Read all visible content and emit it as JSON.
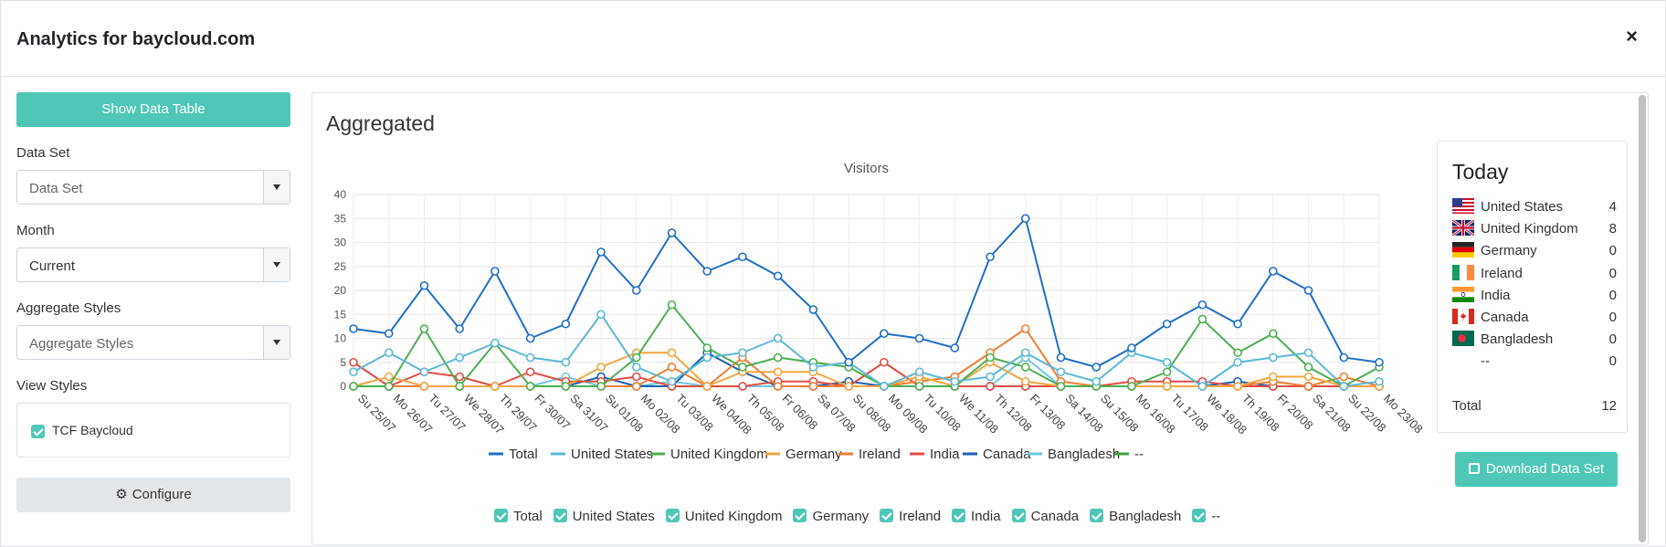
{
  "modal": {
    "title": "Analytics for baycloud.com",
    "close_label": "×"
  },
  "sidebar": {
    "show_table_label": "Show Data Table",
    "data_set": {
      "label": "Data Set",
      "placeholder": "Data Set"
    },
    "month": {
      "label": "Month",
      "value": "Current"
    },
    "aggregate_styles": {
      "label": "Aggregate Styles",
      "placeholder": "Aggregate Styles"
    },
    "view_styles": {
      "label": "View Styles",
      "items": [
        {
          "label": "TCF Baycloud",
          "checked": true
        }
      ]
    },
    "configure_label": "Configure"
  },
  "panel": {
    "title": "Aggregated"
  },
  "today": {
    "title": "Today",
    "rows": [
      {
        "country": "United States",
        "count": "4",
        "flag": "us-flag"
      },
      {
        "country": "United Kingdom",
        "count": "8",
        "flag": "uk-flag"
      },
      {
        "country": "Germany",
        "count": "0",
        "flag": "de-flag"
      },
      {
        "country": "Ireland",
        "count": "0",
        "flag": "ie-flag"
      },
      {
        "country": "India",
        "count": "0",
        "flag": "in-flag"
      },
      {
        "country": "Canada",
        "count": "0",
        "flag": "ca-flag"
      },
      {
        "country": "Bangladesh",
        "count": "0",
        "flag": "bd-flag"
      },
      {
        "country": "--",
        "count": "0",
        "flag": ""
      }
    ],
    "total_label": "Total",
    "total_value": "12"
  },
  "download_label": "Download Data Set",
  "series_checks": [
    "Total",
    "United States",
    "United Kingdom",
    "Germany",
    "Ireland",
    "India",
    "Canada",
    "Bangladesh",
    "--"
  ],
  "colors": {
    "teal": "#4fc7b6"
  },
  "chart_data": {
    "type": "line",
    "title": "Visitors",
    "ylim": [
      0,
      40
    ],
    "yticks": [
      0,
      5,
      10,
      15,
      20,
      25,
      30,
      35,
      40
    ],
    "categories": [
      "Su 25/07",
      "Mo 26/07",
      "Tu 27/07",
      "We 28/07",
      "Th 29/07",
      "Fr 30/07",
      "Sa 31/07",
      "Su 01/08",
      "Mo 02/08",
      "Tu 03/08",
      "We 04/08",
      "Th 05/08",
      "Fr 06/08",
      "Sa 07/08",
      "Su 08/08",
      "Mo 09/08",
      "Tu 10/08",
      "We 11/08",
      "Th 12/08",
      "Fr 13/08",
      "Sa 14/08",
      "Su 15/08",
      "Mo 16/08",
      "Tu 17/08",
      "We 18/08",
      "Th 19/08",
      "Fr 20/08",
      "Sa 21/08",
      "Su 22/08",
      "Mo 23/08"
    ],
    "legend_position": "bottom",
    "series": [
      {
        "name": "Total",
        "color": "#1f6fc5",
        "values": [
          12,
          11,
          21,
          12,
          24,
          10,
          13,
          28,
          20,
          32,
          24,
          27,
          23,
          16,
          5,
          11,
          10,
          8,
          27,
          35,
          6,
          4,
          8,
          13,
          17,
          13,
          24,
          20,
          6,
          5
        ]
      },
      {
        "name": "United States",
        "color": "#5bb8d6",
        "values": [
          3,
          7,
          3,
          6,
          9,
          6,
          5,
          15,
          4,
          1,
          6,
          7,
          10,
          4,
          5,
          0,
          3,
          1,
          2,
          7,
          3,
          1,
          7,
          5,
          0,
          5,
          6,
          7,
          0,
          1
        ]
      },
      {
        "name": "United Kingdom",
        "color": "#4caf50",
        "values": [
          0,
          0,
          12,
          0,
          9,
          0,
          0,
          0,
          6,
          17,
          8,
          4,
          6,
          5,
          4,
          0,
          0,
          0,
          6,
          4,
          0,
          0,
          0,
          3,
          14,
          7,
          11,
          4,
          0,
          4
        ]
      },
      {
        "name": "Germany",
        "color": "#f0a63f",
        "values": [
          0,
          2,
          0,
          0,
          0,
          0,
          0,
          4,
          7,
          7,
          0,
          3,
          3,
          3,
          0,
          0,
          2,
          0,
          5,
          1,
          0,
          0,
          0,
          0,
          0,
          0,
          2,
          2,
          0,
          0
        ]
      },
      {
        "name": "Ireland",
        "color": "#ee7e33",
        "values": [
          0,
          0,
          0,
          0,
          0,
          0,
          0,
          0,
          0,
          4,
          0,
          6,
          0,
          0,
          0,
          0,
          1,
          2,
          7,
          12,
          1,
          0,
          0,
          0,
          0,
          0,
          1,
          0,
          2,
          0
        ]
      },
      {
        "name": "India",
        "color": "#e34b42",
        "values": [
          5,
          0,
          3,
          2,
          0,
          3,
          1,
          1,
          2,
          0,
          0,
          0,
          1,
          1,
          0,
          5,
          0,
          0,
          0,
          0,
          0,
          0,
          1,
          1,
          1,
          0,
          0,
          0,
          0,
          0
        ]
      },
      {
        "name": "Canada",
        "color": "#1b5fb2",
        "values": [
          0,
          0,
          0,
          0,
          0,
          0,
          0,
          2,
          0,
          0,
          7,
          3,
          0,
          0,
          1,
          0,
          0,
          0,
          0,
          0,
          0,
          0,
          0,
          0,
          0,
          1,
          0,
          0,
          0,
          0
        ]
      },
      {
        "name": "Bangladesh",
        "color": "#6cc8e0",
        "values": [
          0,
          0,
          0,
          0,
          0,
          0,
          2,
          0,
          0,
          1,
          0,
          0,
          0,
          0,
          0,
          0,
          0,
          0,
          0,
          6,
          0,
          0,
          0,
          0,
          0,
          0,
          0,
          0,
          0,
          0
        ]
      },
      {
        "name": "--",
        "color": "#3aa344",
        "values": [
          0,
          0,
          0,
          0,
          0,
          0,
          0,
          0,
          0,
          0,
          0,
          0,
          0,
          0,
          0,
          0,
          0,
          0,
          0,
          0,
          0,
          0,
          0,
          0,
          0,
          0,
          0,
          0,
          0,
          0
        ]
      }
    ]
  }
}
